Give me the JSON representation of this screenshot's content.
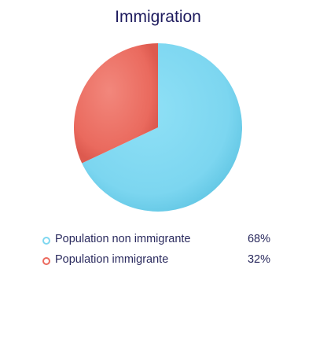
{
  "chart_data": {
    "type": "pie",
    "title": "Immigration",
    "slices": [
      {
        "label": "Population non immigrante",
        "value": 68,
        "display": "68%",
        "color": "#7fd7f0"
      },
      {
        "label": "Population immigrante",
        "value": 32,
        "display": "32%",
        "color": "#ec6a5e"
      }
    ],
    "start_angle": "top",
    "direction": "clockwise",
    "legend_position": "bottom"
  }
}
